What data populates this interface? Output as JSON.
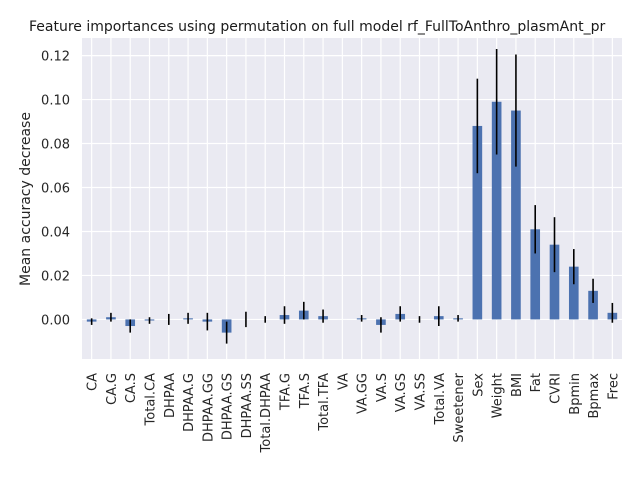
{
  "chart_data": {
    "type": "bar",
    "title": "Feature importances using permutation on full model rf_FullToAnthro_plasmAnt_pr",
    "xlabel": "",
    "ylabel": "Mean accuracy decrease",
    "ylim": [
      -0.018,
      0.128
    ],
    "yticks": [
      0.0,
      0.02,
      0.04,
      0.06,
      0.08,
      0.1,
      0.12
    ],
    "ytick_labels": [
      "0.00",
      "0.02",
      "0.04",
      "0.06",
      "0.08",
      "0.10",
      "0.12"
    ],
    "grid": true,
    "colors": {
      "bar": "#4c72b0",
      "error": "#000000",
      "background": "#eaeaf2",
      "grid": "#ffffff"
    },
    "categories": [
      "CA",
      "CA.G",
      "CA.S",
      "Total.CA",
      "DHPAA",
      "DHPAA.G",
      "DHPAA.GG",
      "DHPAA.GS",
      "DHPAA.SS",
      "Total.DHPAA",
      "TFA.G",
      "TFA.S",
      "Total.TFA",
      "VA",
      "VA.GG",
      "VA.S",
      "VA.GS",
      "VA.SS",
      "Total.VA",
      "Sweetener",
      "Sex",
      "Weight",
      "BMI",
      "Fat",
      "CVRI",
      "Bpmin",
      "Bpmax",
      "Frec"
    ],
    "values": [
      -0.001,
      0.001,
      -0.003,
      -0.0005,
      0.0,
      0.0005,
      -0.001,
      -0.006,
      0.0,
      0.0,
      0.002,
      0.004,
      0.0015,
      0.0,
      0.0005,
      -0.0025,
      0.0025,
      0.0,
      0.0015,
      0.0005,
      0.088,
      0.099,
      0.095,
      0.041,
      0.034,
      0.024,
      0.013,
      0.003
    ],
    "errors": [
      0.0015,
      0.002,
      0.003,
      0.0015,
      0.0025,
      0.0025,
      0.004,
      0.005,
      0.0035,
      0.0015,
      0.004,
      0.004,
      0.003,
      0.0,
      0.0015,
      0.0035,
      0.0035,
      0.0015,
      0.0045,
      0.0015,
      0.0215,
      0.024,
      0.0255,
      0.011,
      0.0125,
      0.008,
      0.0055,
      0.0045
    ]
  }
}
